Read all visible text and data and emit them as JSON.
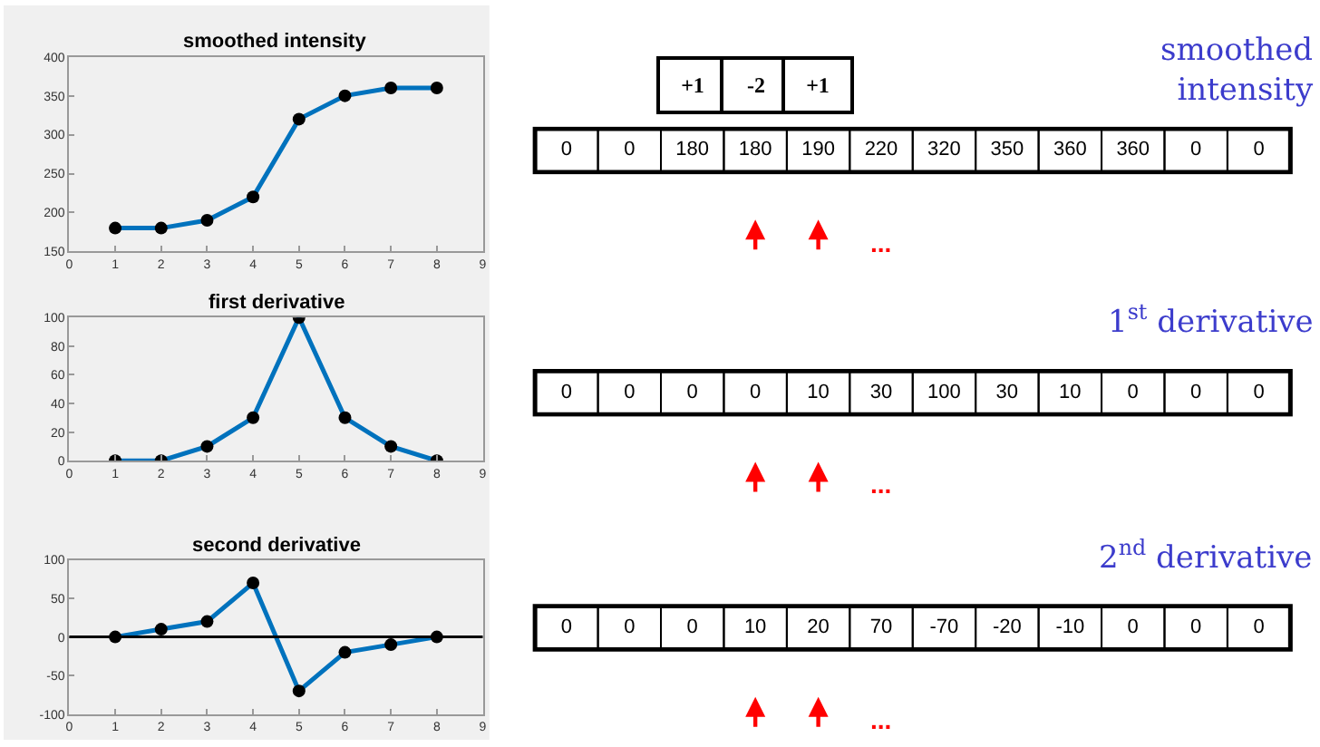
{
  "chart_data": [
    {
      "type": "line",
      "title": "smoothed intensity",
      "x": [
        1,
        2,
        3,
        4,
        5,
        6,
        7,
        8
      ],
      "marker": "circle",
      "line_style": "solid",
      "grid": false,
      "series": [
        {
          "color": "#0072bd",
          "values": [
            180,
            180,
            190,
            220,
            320,
            350,
            360,
            360
          ]
        }
      ],
      "xlim": [
        0,
        9
      ],
      "xticks": [
        0,
        1,
        2,
        3,
        4,
        5,
        6,
        7,
        8,
        9
      ],
      "ylim": [
        150,
        400
      ],
      "yticks": [
        150,
        200,
        250,
        300,
        350,
        400
      ]
    },
    {
      "type": "line",
      "title": "first derivative",
      "x": [
        1,
        2,
        3,
        4,
        5,
        6,
        7,
        8
      ],
      "marker": "circle",
      "line_style": "solid",
      "grid": false,
      "series": [
        {
          "color": "#0072bd",
          "values": [
            0,
            0,
            10,
            30,
            100,
            30,
            10,
            0
          ]
        }
      ],
      "xlim": [
        0,
        9
      ],
      "xticks": [
        0,
        1,
        2,
        3,
        4,
        5,
        6,
        7,
        8,
        9
      ],
      "ylim": [
        0,
        100
      ],
      "yticks": [
        0,
        20,
        40,
        60,
        80,
        100
      ]
    },
    {
      "type": "line",
      "title": "second derivative",
      "x": [
        1,
        2,
        3,
        4,
        5,
        6,
        7,
        8
      ],
      "marker": "circle",
      "line_style": "solid",
      "grid": false,
      "series": [
        {
          "color": "#0072bd",
          "values": [
            0,
            10,
            20,
            70,
            -70,
            -20,
            -10,
            0
          ]
        }
      ],
      "xlim": [
        0,
        9
      ],
      "xticks": [
        0,
        1,
        2,
        3,
        4,
        5,
        6,
        7,
        8,
        9
      ],
      "ylim": [
        -100,
        100
      ],
      "yticks": [
        -100,
        -50,
        0,
        50,
        100
      ],
      "ref_lines": [
        {
          "axis": "y",
          "value": 0,
          "color": "#000000"
        }
      ]
    },
    {
      "type": "other",
      "title": "smoothed intensity",
      "values": [
        0,
        0,
        180,
        180,
        190,
        220,
        320,
        350,
        360,
        360,
        0,
        0
      ],
      "data_labels": true,
      "annotations": [
        "+1",
        "-2",
        "+1",
        "..."
      ]
    },
    {
      "type": "other",
      "title": "1$^{st}$ derivative",
      "values": [
        0,
        0,
        0,
        0,
        10,
        30,
        100,
        30,
        10,
        0,
        0,
        0
      ],
      "data_labels": true,
      "annotations": [
        "..."
      ]
    },
    {
      "type": "other",
      "title": "2$^{nd}$ derivative",
      "values": [
        0,
        0,
        0,
        10,
        20,
        70,
        -70,
        -20,
        -10,
        0,
        0,
        0
      ],
      "data_labels": true,
      "annotations": [
        "..."
      ]
    }
  ]
}
